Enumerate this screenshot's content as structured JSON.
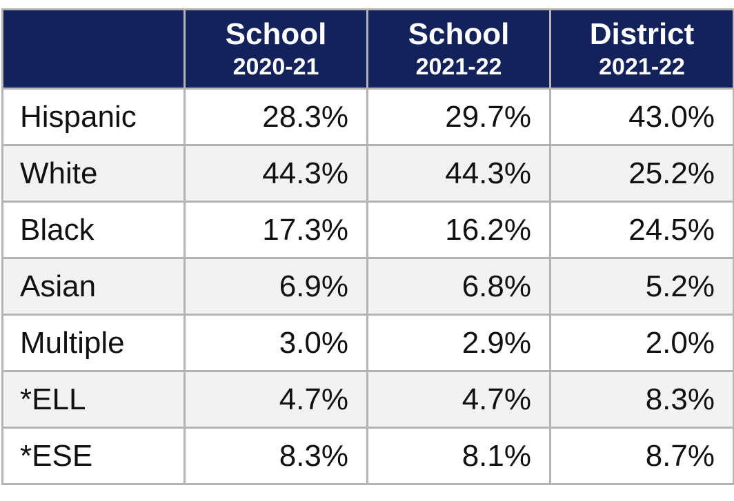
{
  "table": {
    "columns": [
      {
        "title": "School",
        "subtitle": "2020-21"
      },
      {
        "title": "School",
        "subtitle": "2021-22"
      },
      {
        "title": "District",
        "subtitle": "2021-22"
      }
    ],
    "rows": [
      [
        "Hispanic",
        "28.3%",
        "29.7%",
        "43.0%"
      ],
      [
        "White",
        "44.3%",
        "44.3%",
        "25.2%"
      ],
      [
        "Black",
        "17.3%",
        "16.2%",
        "24.5%"
      ],
      [
        "Asian",
        "6.9%",
        "6.8%",
        "5.2%"
      ],
      [
        "Multiple",
        "3.0%",
        "2.9%",
        "2.0%"
      ],
      [
        "*ELL",
        "4.7%",
        "4.7%",
        "8.3%"
      ],
      [
        "*ESE",
        "8.3%",
        "8.1%",
        "8.7%"
      ]
    ]
  }
}
